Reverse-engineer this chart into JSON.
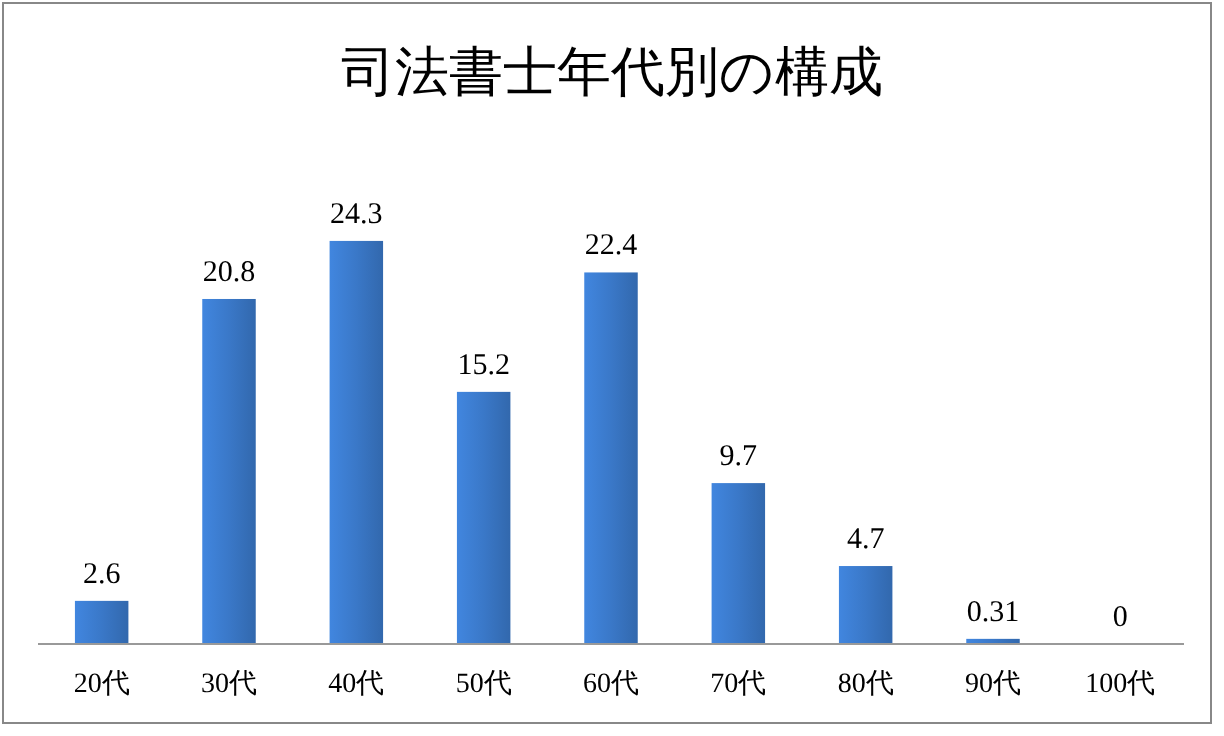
{
  "chart_data": {
    "type": "bar",
    "title": "司法書士年代別の構成",
    "categories": [
      "20代",
      "30代",
      "40代",
      "50代",
      "60代",
      "70代",
      "80代",
      "90代",
      "100代"
    ],
    "values": [
      2.6,
      20.8,
      24.3,
      15.2,
      22.4,
      9.7,
      4.7,
      0.31,
      0
    ],
    "color": "#3a78c8",
    "data_labels": true
  }
}
